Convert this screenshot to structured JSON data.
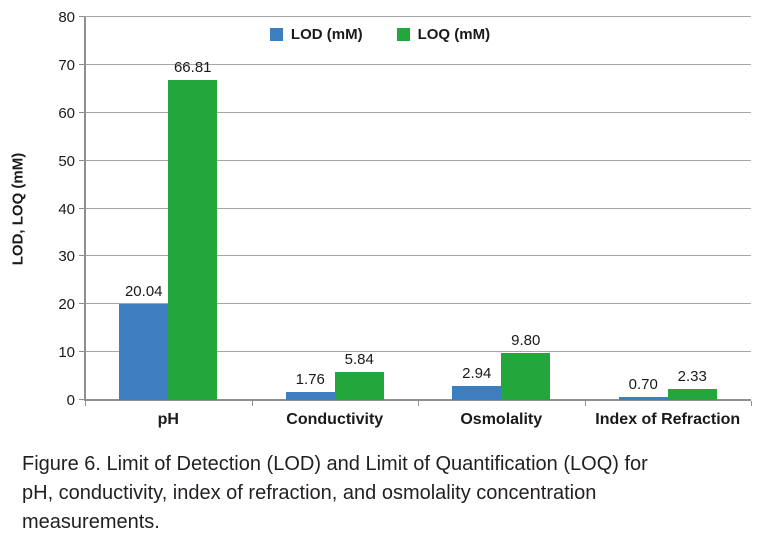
{
  "figure": {
    "caption": "Figure 6. Limit of Detection (LOD) and Limit of Quantification (LOQ) for pH, conductivity, index of refraction, and osmolality concentration measurements."
  },
  "chart_data": {
    "type": "bar",
    "title": "",
    "categories": [
      "pH",
      "Conductivity",
      "Osmolality",
      "Index of Refraction"
    ],
    "series": [
      {
        "name": "LOD (mM)",
        "color": "#3d7ec1",
        "values": [
          20.04,
          1.76,
          2.94,
          0.7
        ]
      },
      {
        "name": "LOQ (mM)",
        "color": "#22a73c",
        "values": [
          66.81,
          5.84,
          9.8,
          2.33
        ]
      }
    ],
    "value_label_format": "2-decimals",
    "xlabel": "",
    "ylabel": "LOD, LOQ (mM)",
    "ylim": [
      0,
      80
    ],
    "ytick_step": 10,
    "grid": true,
    "legend_position": "top-center",
    "grid_color": "#a6a6a6",
    "axis_color": "#8f8f8f",
    "text_color": "#1a1a1a"
  }
}
